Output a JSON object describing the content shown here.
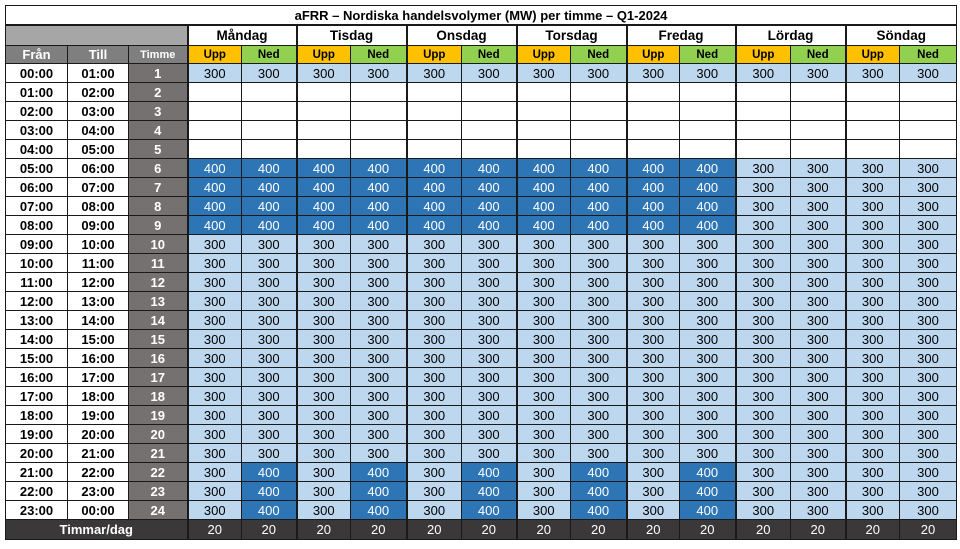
{
  "title": "aFRR – Nordiska handelsvolymer (MW) per timme – Q1-2024",
  "headers": {
    "from": "Från",
    "till": "Till",
    "hour": "Timme",
    "up": "Upp",
    "down": "Ned",
    "total_label": "Timmar/dag"
  },
  "days": [
    "Måndag",
    "Tisdag",
    "Onsdag",
    "Torsdag",
    "Fredag",
    "Lördag",
    "Söndag"
  ],
  "rows": [
    {
      "from": "00:00",
      "till": "01:00",
      "hour": "1",
      "cells": [
        [
          "300",
          "300"
        ],
        [
          "300",
          "300"
        ],
        [
          "300",
          "300"
        ],
        [
          "300",
          "300"
        ],
        [
          "300",
          "300"
        ],
        [
          "300",
          "300"
        ],
        [
          "300",
          "300"
        ]
      ]
    },
    {
      "from": "01:00",
      "till": "02:00",
      "hour": "2",
      "cells": [
        [
          "",
          ""
        ],
        [
          "",
          ""
        ],
        [
          "",
          ""
        ],
        [
          "",
          ""
        ],
        [
          "",
          ""
        ],
        [
          "",
          ""
        ],
        [
          "",
          ""
        ]
      ]
    },
    {
      "from": "02:00",
      "till": "03:00",
      "hour": "3",
      "cells": [
        [
          "",
          ""
        ],
        [
          "",
          ""
        ],
        [
          "",
          ""
        ],
        [
          "",
          ""
        ],
        [
          "",
          ""
        ],
        [
          "",
          ""
        ],
        [
          "",
          ""
        ]
      ]
    },
    {
      "from": "03:00",
      "till": "04:00",
      "hour": "4",
      "cells": [
        [
          "",
          ""
        ],
        [
          "",
          ""
        ],
        [
          "",
          ""
        ],
        [
          "",
          ""
        ],
        [
          "",
          ""
        ],
        [
          "",
          ""
        ],
        [
          "",
          ""
        ]
      ]
    },
    {
      "from": "04:00",
      "till": "05:00",
      "hour": "5",
      "cells": [
        [
          "",
          ""
        ],
        [
          "",
          ""
        ],
        [
          "",
          ""
        ],
        [
          "",
          ""
        ],
        [
          "",
          ""
        ],
        [
          "",
          ""
        ],
        [
          "",
          ""
        ]
      ]
    },
    {
      "from": "05:00",
      "till": "06:00",
      "hour": "6",
      "cells": [
        [
          "400",
          "400"
        ],
        [
          "400",
          "400"
        ],
        [
          "400",
          "400"
        ],
        [
          "400",
          "400"
        ],
        [
          "400",
          "400"
        ],
        [
          "300",
          "300"
        ],
        [
          "300",
          "300"
        ]
      ]
    },
    {
      "from": "06:00",
      "till": "07:00",
      "hour": "7",
      "cells": [
        [
          "400",
          "400"
        ],
        [
          "400",
          "400"
        ],
        [
          "400",
          "400"
        ],
        [
          "400",
          "400"
        ],
        [
          "400",
          "400"
        ],
        [
          "300",
          "300"
        ],
        [
          "300",
          "300"
        ]
      ]
    },
    {
      "from": "07:00",
      "till": "08:00",
      "hour": "8",
      "cells": [
        [
          "400",
          "400"
        ],
        [
          "400",
          "400"
        ],
        [
          "400",
          "400"
        ],
        [
          "400",
          "400"
        ],
        [
          "400",
          "400"
        ],
        [
          "300",
          "300"
        ],
        [
          "300",
          "300"
        ]
      ]
    },
    {
      "from": "08:00",
      "till": "09:00",
      "hour": "9",
      "cells": [
        [
          "400",
          "400"
        ],
        [
          "400",
          "400"
        ],
        [
          "400",
          "400"
        ],
        [
          "400",
          "400"
        ],
        [
          "400",
          "400"
        ],
        [
          "300",
          "300"
        ],
        [
          "300",
          "300"
        ]
      ]
    },
    {
      "from": "09:00",
      "till": "10:00",
      "hour": "10",
      "cells": [
        [
          "300",
          "300"
        ],
        [
          "300",
          "300"
        ],
        [
          "300",
          "300"
        ],
        [
          "300",
          "300"
        ],
        [
          "300",
          "300"
        ],
        [
          "300",
          "300"
        ],
        [
          "300",
          "300"
        ]
      ]
    },
    {
      "from": "10:00",
      "till": "11:00",
      "hour": "11",
      "cells": [
        [
          "300",
          "300"
        ],
        [
          "300",
          "300"
        ],
        [
          "300",
          "300"
        ],
        [
          "300",
          "300"
        ],
        [
          "300",
          "300"
        ],
        [
          "300",
          "300"
        ],
        [
          "300",
          "300"
        ]
      ]
    },
    {
      "from": "11:00",
      "till": "12:00",
      "hour": "12",
      "cells": [
        [
          "300",
          "300"
        ],
        [
          "300",
          "300"
        ],
        [
          "300",
          "300"
        ],
        [
          "300",
          "300"
        ],
        [
          "300",
          "300"
        ],
        [
          "300",
          "300"
        ],
        [
          "300",
          "300"
        ]
      ]
    },
    {
      "from": "12:00",
      "till": "13:00",
      "hour": "13",
      "cells": [
        [
          "300",
          "300"
        ],
        [
          "300",
          "300"
        ],
        [
          "300",
          "300"
        ],
        [
          "300",
          "300"
        ],
        [
          "300",
          "300"
        ],
        [
          "300",
          "300"
        ],
        [
          "300",
          "300"
        ]
      ]
    },
    {
      "from": "13:00",
      "till": "14:00",
      "hour": "14",
      "cells": [
        [
          "300",
          "300"
        ],
        [
          "300",
          "300"
        ],
        [
          "300",
          "300"
        ],
        [
          "300",
          "300"
        ],
        [
          "300",
          "300"
        ],
        [
          "300",
          "300"
        ],
        [
          "300",
          "300"
        ]
      ]
    },
    {
      "from": "14:00",
      "till": "15:00",
      "hour": "15",
      "cells": [
        [
          "300",
          "300"
        ],
        [
          "300",
          "300"
        ],
        [
          "300",
          "300"
        ],
        [
          "300",
          "300"
        ],
        [
          "300",
          "300"
        ],
        [
          "300",
          "300"
        ],
        [
          "300",
          "300"
        ]
      ]
    },
    {
      "from": "15:00",
      "till": "16:00",
      "hour": "16",
      "cells": [
        [
          "300",
          "300"
        ],
        [
          "300",
          "300"
        ],
        [
          "300",
          "300"
        ],
        [
          "300",
          "300"
        ],
        [
          "300",
          "300"
        ],
        [
          "300",
          "300"
        ],
        [
          "300",
          "300"
        ]
      ]
    },
    {
      "from": "16:00",
      "till": "17:00",
      "hour": "17",
      "cells": [
        [
          "300",
          "300"
        ],
        [
          "300",
          "300"
        ],
        [
          "300",
          "300"
        ],
        [
          "300",
          "300"
        ],
        [
          "300",
          "300"
        ],
        [
          "300",
          "300"
        ],
        [
          "300",
          "300"
        ]
      ]
    },
    {
      "from": "17:00",
      "till": "18:00",
      "hour": "18",
      "cells": [
        [
          "300",
          "300"
        ],
        [
          "300",
          "300"
        ],
        [
          "300",
          "300"
        ],
        [
          "300",
          "300"
        ],
        [
          "300",
          "300"
        ],
        [
          "300",
          "300"
        ],
        [
          "300",
          "300"
        ]
      ]
    },
    {
      "from": "18:00",
      "till": "19:00",
      "hour": "19",
      "cells": [
        [
          "300",
          "300"
        ],
        [
          "300",
          "300"
        ],
        [
          "300",
          "300"
        ],
        [
          "300",
          "300"
        ],
        [
          "300",
          "300"
        ],
        [
          "300",
          "300"
        ],
        [
          "300",
          "300"
        ]
      ]
    },
    {
      "from": "19:00",
      "till": "20:00",
      "hour": "20",
      "cells": [
        [
          "300",
          "300"
        ],
        [
          "300",
          "300"
        ],
        [
          "300",
          "300"
        ],
        [
          "300",
          "300"
        ],
        [
          "300",
          "300"
        ],
        [
          "300",
          "300"
        ],
        [
          "300",
          "300"
        ]
      ]
    },
    {
      "from": "20:00",
      "till": "21:00",
      "hour": "21",
      "cells": [
        [
          "300",
          "300"
        ],
        [
          "300",
          "300"
        ],
        [
          "300",
          "300"
        ],
        [
          "300",
          "300"
        ],
        [
          "300",
          "300"
        ],
        [
          "300",
          "300"
        ],
        [
          "300",
          "300"
        ]
      ]
    },
    {
      "from": "21:00",
      "till": "22:00",
      "hour": "22",
      "cells": [
        [
          "300",
          "400"
        ],
        [
          "300",
          "400"
        ],
        [
          "300",
          "400"
        ],
        [
          "300",
          "400"
        ],
        [
          "300",
          "400"
        ],
        [
          "300",
          "300"
        ],
        [
          "300",
          "300"
        ]
      ]
    },
    {
      "from": "22:00",
      "till": "23:00",
      "hour": "23",
      "cells": [
        [
          "300",
          "400"
        ],
        [
          "300",
          "400"
        ],
        [
          "300",
          "400"
        ],
        [
          "300",
          "400"
        ],
        [
          "300",
          "400"
        ],
        [
          "300",
          "300"
        ],
        [
          "300",
          "300"
        ]
      ]
    },
    {
      "from": "23:00",
      "till": "00:00",
      "hour": "24",
      "cells": [
        [
          "300",
          "400"
        ],
        [
          "300",
          "400"
        ],
        [
          "300",
          "400"
        ],
        [
          "300",
          "400"
        ],
        [
          "300",
          "400"
        ],
        [
          "300",
          "300"
        ],
        [
          "300",
          "300"
        ]
      ]
    }
  ],
  "totals": [
    [
      "20",
      "20"
    ],
    [
      "20",
      "20"
    ],
    [
      "20",
      "20"
    ],
    [
      "20",
      "20"
    ],
    [
      "20",
      "20"
    ],
    [
      "20",
      "20"
    ],
    [
      "20",
      "20"
    ]
  ],
  "colors": {
    "value_400": "#2e75b6",
    "value_300": "#bdd7ee",
    "upp_header": "#ffc000",
    "ned_header": "#92d050",
    "hour_column": "#767171",
    "totals_row": "#3a3838"
  }
}
